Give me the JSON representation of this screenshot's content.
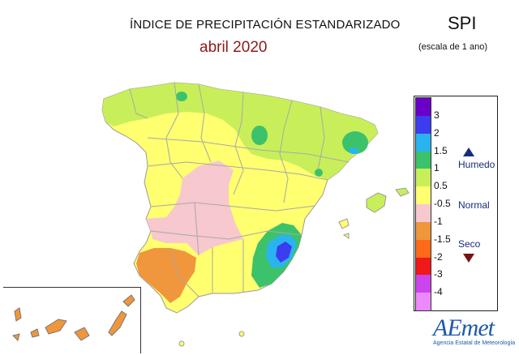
{
  "header": {
    "title": "ÍNDICE DE PRECIPITACIÓN ESTANDARIZADO",
    "subtitle": "abril 2020",
    "index_name": "SPI",
    "scale_note": "(escala de 1 ano)"
  },
  "legend": {
    "ticks": [
      "3",
      "2",
      "1.5",
      "1",
      "0.5",
      "-0.5",
      "-1",
      "-1.5",
      "-2",
      "-3",
      "-4"
    ],
    "colors": [
      "#6a00c8",
      "#3c3cf0",
      "#2ab4ef",
      "#3cc26a",
      "#c8ef5a",
      "#ffff70",
      "#f7c8cd",
      "#f0963c",
      "#ff6a1a",
      "#f01818",
      "#cc44ee",
      "#ee88ff"
    ],
    "categories": {
      "wet": "Humedo",
      "normal": "Normal",
      "dry": "Seco"
    }
  },
  "map": {
    "region": "Península Ibérica (España), Baleares y Canarias",
    "classes_present": [
      "1.5 a 2",
      "1 a 1.5",
      "0.5 a 1",
      "-0.5 a 0.5",
      "-1 a -0.5",
      "-1.5 a -1",
      "2 a 3"
    ]
  },
  "logo": {
    "name": "AEmet",
    "tagline": "Agencia Estatal de Meteorología"
  }
}
